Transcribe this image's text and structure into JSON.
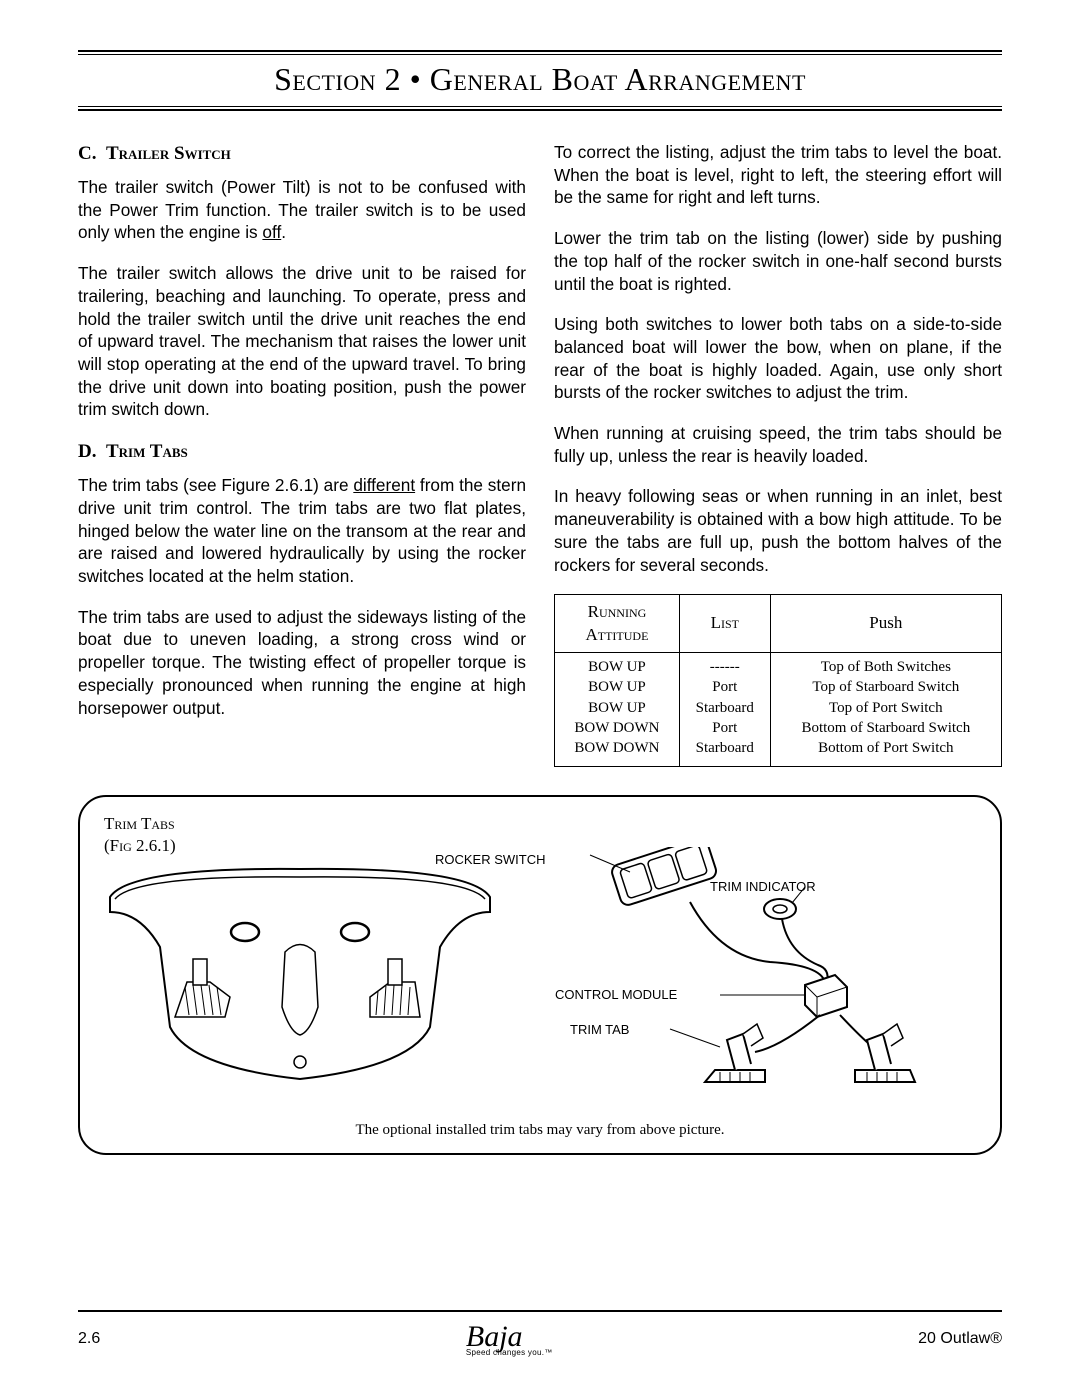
{
  "header": {
    "title_html": "S<span class='sc'>ection</span> 2 • G<span class='sc'>eneral</span> B<span class='sc'>oat</span> A<span class='sc'>rrangement</span>"
  },
  "left": {
    "heading_c_html": "C.&nbsp;&nbsp;T<span class='sc'>railer</span> S<span class='sc'>witch</span>",
    "c_p1_html": "The trailer switch (Power Tilt) is not to be confused with the Power Trim function.  The trailer switch is to be used only when the engine is <span class='ul'>off</span>.",
    "c_p2": "The trailer switch allows the drive unit to be raised for trailering, beaching and launching.  To operate, press and hold the trailer switch until the drive unit reaches the end of upward travel.  The mechanism that raises the lower unit will stop operating at the end of the upward travel.  To bring the drive unit down into boating position, push the power trim switch down.",
    "heading_d_html": "D.&nbsp;&nbsp;T<span class='sc'>rim</span> T<span class='sc'>abs</span>",
    "d_p1_html": "The trim tabs (see Figure 2.6.1) are <span class='ul'>different</span> from the stern drive unit trim control.  The trim tabs are two flat plates, hinged below the water line on the transom at the rear and are raised and lowered hydraulically by using the rocker switches located at the helm station.",
    "d_p2": "The trim tabs are used to adjust the sideways listing of the boat due to uneven loading, a strong cross wind or propeller torque.  The twisting effect of propeller torque is especially pronounced when running the engine at high horsepower output."
  },
  "right": {
    "p1": "To correct the listing, adjust the trim tabs to level the boat.  When the boat is level, right to left, the steering effort will be the same for right and left turns.",
    "p2": "Lower the trim tab on the listing (lower) side by pushing the top half of the rocker switch in one-half second bursts until the boat is righted.",
    "p3": "Using both switches to lower both tabs on a side-to-side balanced boat will lower the bow, when on plane, if the rear of the boat is highly loaded.  Again, use only short bursts of the rocker switches to adjust the trim.",
    "p4": "When running at cruising speed, the trim tabs should be fully up, unless the rear is heavily loaded.",
    "p5": "In heavy following seas or when running in an inlet, best maneuverability is obtained with a bow high attitude.  To be sure the tabs are full up, push the bottom halves of the rockers for several seconds."
  },
  "table": {
    "headers": {
      "col1_html": "R<span class='sc'>unning</span><br>A<span class='sc'>ttitude</span>",
      "col2_html": "L<span class='sc'>ist</span>",
      "col3": "Push"
    },
    "col1": [
      "BOW UP",
      "BOW UP",
      "BOW UP",
      "BOW DOWN",
      "BOW DOWN"
    ],
    "col2": [
      "------",
      "Port",
      "Starboard",
      "Port",
      "Starboard"
    ],
    "col3": [
      "Top of Both Switches",
      "Top of Starboard Switch",
      "Top of Port Switch",
      "Bottom of Starboard Switch",
      "Bottom of Port Switch"
    ]
  },
  "figure": {
    "label_html": "T<span class='sc'>rim</span> T<span class='sc'>abs</span><br>(F<span class='sc'>ig</span> 2.6.1)",
    "rocker": "ROCKER SWITCH",
    "trim_ind": "TRIM INDICATOR",
    "ctrl_mod": "CONTROL MODULE",
    "trim_tab": "TRIM TAB",
    "caption": "The optional installed trim tabs may vary from above picture."
  },
  "footer": {
    "page": "2.6",
    "brand": "Baja",
    "tag": "Speed changes you.™",
    "model": "20 Outlaw®"
  }
}
